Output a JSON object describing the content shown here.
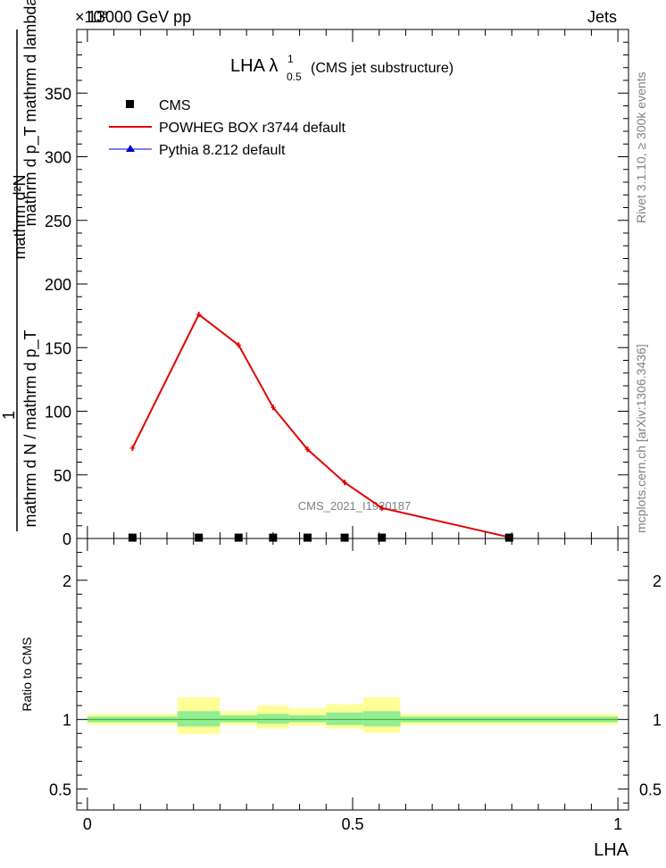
{
  "header": {
    "left": "13000 GeV pp",
    "right": "Jets",
    "exponent": "×10³"
  },
  "sidebar": {
    "rivet": "Rivet 3.1.10, ≥ 300k events",
    "mcplots": "mcplots.cern.ch [arXiv:1306.3436]"
  },
  "watermark": "CMS_2021_I1920187",
  "colors": {
    "cms": "#000000",
    "powheg": "#e00000",
    "pythia": "#0000cc",
    "band_inner": "#90ee90",
    "band_outer": "#ffff99"
  },
  "chart_data": [
    {
      "type": "line",
      "title": "LHA λ^1_0.5 (CMS jet substructure)",
      "title_main": "LHA λ",
      "title_sup": "1",
      "title_sub": "0.5",
      "title_rest": "(CMS jet substructure)",
      "ylabel_top": "mathrm d²N",
      "ylabel_mid": "mathrm d p_T mathrm d lambda",
      "ylabel_bot": "mathrm d N / mathrm d p_T",
      "ylabel_one": "1",
      "ylim": [
        0,
        400
      ],
      "xlim": [
        -0.02,
        1.02
      ],
      "yticks": [
        0,
        50,
        100,
        150,
        200,
        250,
        300,
        350
      ],
      "yticklabels": [
        "0",
        "50",
        "100",
        "150",
        "200",
        "250",
        "300",
        "350"
      ],
      "legend": {
        "placement": "top-left",
        "entries": [
          "CMS",
          "POWHEG BOX r3744 default",
          "Pythia 8.212 default"
        ]
      },
      "series": [
        {
          "name": "CMS",
          "marker": "square",
          "x": [
            0.085,
            0.21,
            0.285,
            0.35,
            0.415,
            0.485,
            0.555,
            0.795
          ],
          "y": [
            0.3,
            0.3,
            0.3,
            0.3,
            0.3,
            0.3,
            0.3,
            0.3
          ]
        },
        {
          "name": "POWHEG BOX r3744 default",
          "marker": "line",
          "x": [
            0.085,
            0.21,
            0.285,
            0.35,
            0.415,
            0.485,
            0.555,
            0.795
          ],
          "y": [
            71,
            176,
            152,
            103,
            70,
            44,
            24,
            1
          ]
        },
        {
          "name": "Pythia 8.212 default",
          "marker": "triangle",
          "x": [],
          "y": []
        }
      ]
    },
    {
      "type": "area",
      "ylabel": "Ratio to CMS",
      "xlabel": "LHA",
      "ylim": [
        0.35,
        2.3
      ],
      "xlim": [
        -0.02,
        1.02
      ],
      "yticks": [
        0.5,
        1,
        2
      ],
      "yticklabels": [
        "0.5",
        "1",
        "2"
      ],
      "xticks": [
        0,
        0.5,
        1
      ],
      "xticklabels": [
        "0",
        "0.5",
        "1"
      ],
      "bands": [
        {
          "x0": 0.0,
          "x1": 0.17,
          "inner": [
            0.98,
            1.02
          ],
          "outer": [
            0.96,
            1.04
          ]
        },
        {
          "x0": 0.17,
          "x1": 0.25,
          "inner": [
            0.95,
            1.06
          ],
          "outer": [
            0.895,
            1.16
          ]
        },
        {
          "x0": 0.25,
          "x1": 0.32,
          "inner": [
            0.98,
            1.03
          ],
          "outer": [
            0.96,
            1.06
          ]
        },
        {
          "x0": 0.32,
          "x1": 0.38,
          "inner": [
            0.97,
            1.04
          ],
          "outer": [
            0.935,
            1.1
          ]
        },
        {
          "x0": 0.38,
          "x1": 0.45,
          "inner": [
            0.98,
            1.03
          ],
          "outer": [
            0.955,
            1.08
          ]
        },
        {
          "x0": 0.45,
          "x1": 0.52,
          "inner": [
            0.96,
            1.05
          ],
          "outer": [
            0.935,
            1.11
          ]
        },
        {
          "x0": 0.52,
          "x1": 0.59,
          "inner": [
            0.95,
            1.06
          ],
          "outer": [
            0.905,
            1.16
          ]
        },
        {
          "x0": 0.59,
          "x1": 1.0,
          "inner": [
            0.98,
            1.02
          ],
          "outer": [
            0.96,
            1.04
          ]
        }
      ]
    }
  ]
}
